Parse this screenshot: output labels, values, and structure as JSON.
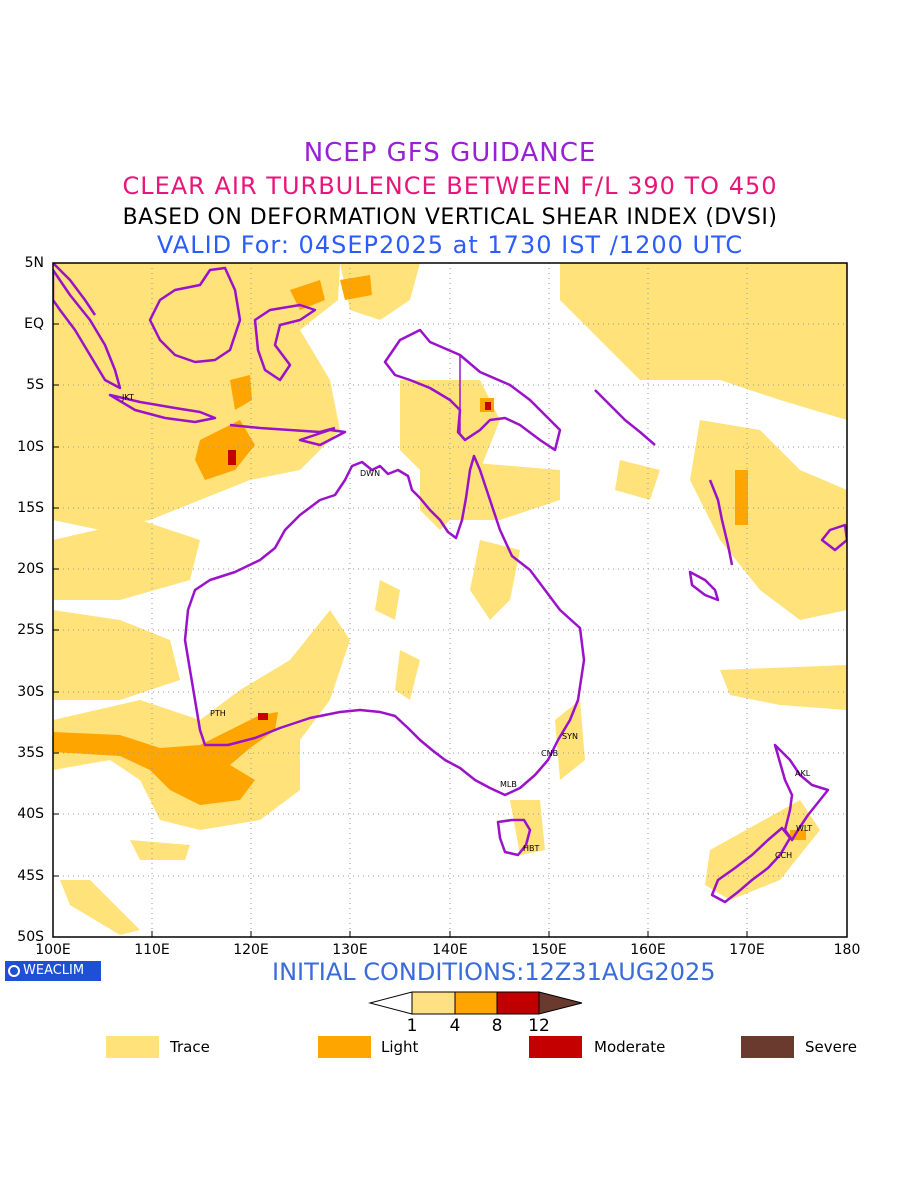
{
  "titles": {
    "line1": "NCEP GFS GUIDANCE",
    "line2": "CLEAR AIR TURBULENCE BETWEEN F/L 390 TO 450",
    "line3": "BASED ON DEFORMATION VERTICAL SHEAR INDEX (DVSI)",
    "line4": "VALID For: 04SEP2025 at 1730 IST /1200 UTC"
  },
  "axes": {
    "y_labels": [
      "5N",
      "EQ",
      "5S",
      "10S",
      "15S",
      "20S",
      "25S",
      "30S",
      "35S",
      "40S",
      "45S",
      "50S"
    ],
    "x_labels": [
      "100E",
      "110E",
      "120E",
      "130E",
      "140E",
      "150E",
      "160E",
      "170E",
      "180"
    ]
  },
  "cities": [
    {
      "code": "JKT"
    },
    {
      "code": "DWN"
    },
    {
      "code": "PTH"
    },
    {
      "code": "SYN"
    },
    {
      "code": "CNB"
    },
    {
      "code": "MLB"
    },
    {
      "code": "HBT"
    },
    {
      "code": "AKL"
    },
    {
      "code": "WLT"
    },
    {
      "code": "CCH"
    }
  ],
  "footer": {
    "brand": "WEACLIM",
    "initial_conditions": "INITIAL CONDITIONS:12Z31AUG2025"
  },
  "colorbar": {
    "ticks": [
      "1",
      "4",
      "8",
      "12"
    ],
    "colors": [
      "#ffffff",
      "#ffe082",
      "#ffa400",
      "#c00000",
      "#6b3a2e"
    ]
  },
  "legend": [
    {
      "label": "Trace",
      "color": "#ffe27a"
    },
    {
      "label": "Light",
      "color": "#ffa500"
    },
    {
      "label": "Moderate",
      "color": "#c40000"
    },
    {
      "label": "Severe",
      "color": "#6b3a2e"
    }
  ],
  "colors": {
    "coastline": "#9a12c9",
    "trace": "#ffe27a",
    "light": "#ffa500",
    "moderate": "#c40000"
  }
}
